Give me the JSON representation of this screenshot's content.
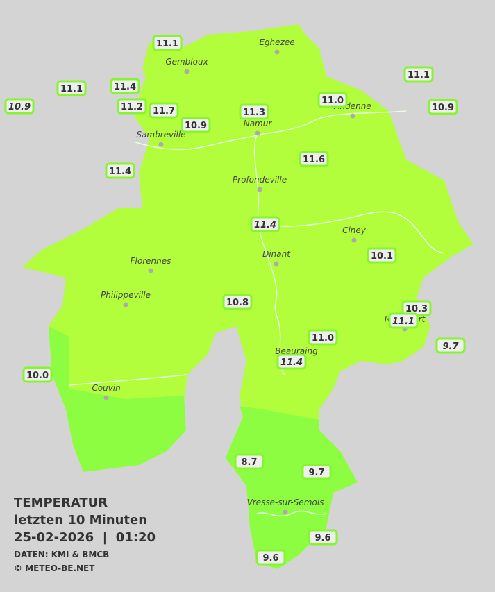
{
  "stations": [
    {
      "label": "11.1"
    },
    {
      "label": "11.1"
    },
    {
      "label": "11.4"
    },
    {
      "label": "10.9",
      "italic": true
    },
    {
      "label": "11.2"
    },
    {
      "label": "11.7"
    },
    {
      "label": "10.9"
    },
    {
      "label": "11.3"
    },
    {
      "label": "11.0"
    },
    {
      "label": "11.1"
    },
    {
      "label": "10.9"
    },
    {
      "label": "11.4"
    },
    {
      "label": "11.6"
    },
    {
      "label": "11.4",
      "italic": true
    },
    {
      "label": "10.1"
    },
    {
      "label": "10.8"
    },
    {
      "label": "10.3"
    },
    {
      "label": "11.1",
      "italic": true
    },
    {
      "label": "9.7",
      "italic": true
    },
    {
      "label": "11.0"
    },
    {
      "label": "11.4",
      "italic": true
    },
    {
      "label": "10.0"
    },
    {
      "label": "8.7"
    },
    {
      "label": "9.7"
    },
    {
      "label": "9.6"
    },
    {
      "label": "9.6"
    }
  ],
  "towns": [
    "Eghezee",
    "Gembloux",
    "Andenne",
    "Namur",
    "Sambreville",
    "Profondeville",
    "Ciney",
    "Dinant",
    "Florennes",
    "Philippeville",
    "Rochefort",
    "Beauraing",
    "Couvin",
    "Vresse-sur-Semois"
  ],
  "legend": {
    "title": "TEMPERATUR",
    "period": "letzten 10 Minuten",
    "datetime": "25-02-2026  |  01:20",
    "source": "DATEN: KMI & BMCB",
    "copyright": "© METEO-BE.NET"
  }
}
